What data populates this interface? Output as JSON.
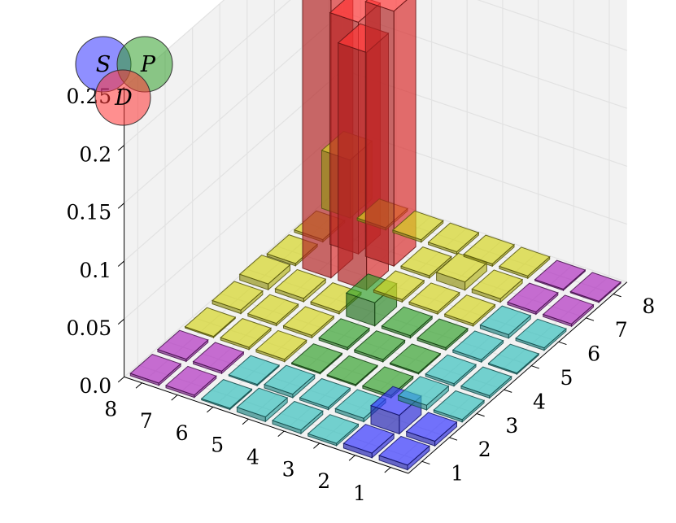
{
  "chart_data": {
    "type": "bar3d",
    "x_ticks": [
      "1",
      "2",
      "3",
      "4",
      "5",
      "6",
      "7",
      "8"
    ],
    "y_ticks": [
      "1",
      "2",
      "3",
      "4",
      "5",
      "6",
      "7",
      "8"
    ],
    "z_ticks": [
      "0.0",
      "0.05",
      "0.1",
      "0.15",
      "0.2",
      "0.25"
    ],
    "zlim": [
      0,
      0.25
    ],
    "grid": true,
    "colors": {
      "S": "#3333ff",
      "P": "#33a02c",
      "D": "#ff3333",
      "SP": "#35c0bd",
      "SD": "#b02cc0",
      "PD": "#d4d41f"
    },
    "legend": {
      "type": "venn",
      "position": "top-left",
      "labels": [
        "S",
        "P",
        "D"
      ]
    },
    "note": "values[i][j]: i = x index (1..8), j = y index (1..8); estimated from the figure",
    "values": [
      [
        0.004,
        0.004,
        0.002,
        0.003,
        0.004,
        0.001,
        0.002,
        0.002
      ],
      [
        0.004,
        0.016,
        0.003,
        0.002,
        0.003,
        0.001,
        0.002,
        0.002
      ],
      [
        0.002,
        0.004,
        0.002,
        0.001,
        0.001,
        0.002,
        0.002,
        0.001
      ],
      [
        0.002,
        0.002,
        0.001,
        0.002,
        0.002,
        0.002,
        0.002,
        0.003
      ],
      [
        0.001,
        0.002,
        0.002,
        0.002,
        0.02,
        0.002,
        0.003,
        0.005
      ],
      [
        0.002,
        0.003,
        0.002,
        0.002,
        0.002,
        0.205,
        0.24,
        0.002
      ],
      [
        0.002,
        0.002,
        0.003,
        0.007,
        0.002,
        0.22,
        0.2,
        0.002
      ],
      [
        0.001,
        0.001,
        0.002,
        0.002,
        0.002,
        0.002,
        0.002,
        0.05
      ]
    ]
  }
}
